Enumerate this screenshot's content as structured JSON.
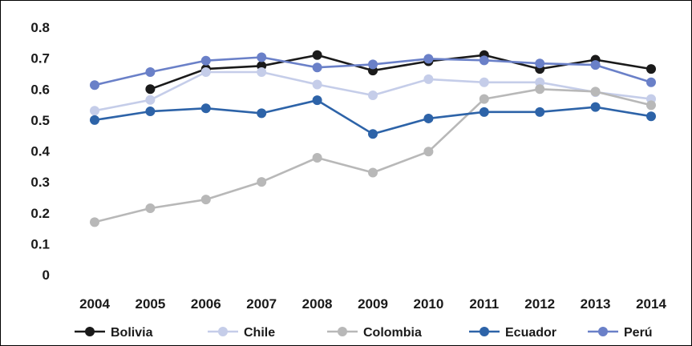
{
  "chart_data": {
    "type": "line",
    "title": "",
    "xlabel": "",
    "ylabel": "",
    "categories": [
      "2004",
      "2005",
      "2006",
      "2007",
      "2008",
      "2009",
      "2010",
      "2011",
      "2012",
      "2013",
      "2014"
    ],
    "ylim": [
      0,
      0.8
    ],
    "yticks": [
      "0",
      "0.1",
      "0.2",
      "0.3",
      "0.4",
      "0.5",
      "0.6",
      "0.7",
      "0.8"
    ],
    "grid": false,
    "legend_position": "bottom",
    "series": [
      {
        "name": "Bolivia",
        "color": "#1a1a1a",
        "values": [
          null,
          0.6,
          0.665,
          0.675,
          0.71,
          0.66,
          0.69,
          0.71,
          0.665,
          0.695,
          0.665
        ]
      },
      {
        "name": "Chile",
        "color": "#c5cde9",
        "values": [
          0.53,
          0.565,
          0.655,
          0.655,
          0.615,
          0.58,
          0.632,
          0.622,
          0.622,
          0.59,
          0.568
        ]
      },
      {
        "name": "Colombia",
        "color": "#b8b8b8",
        "values": [
          0.17,
          0.215,
          0.243,
          0.3,
          0.378,
          0.33,
          0.398,
          0.568,
          0.6,
          0.592,
          0.548
        ]
      },
      {
        "name": "Ecuador",
        "color": "#2d63a8",
        "values": [
          0.5,
          0.528,
          0.538,
          0.522,
          0.564,
          0.455,
          0.505,
          0.526,
          0.526,
          0.542,
          0.512
        ]
      },
      {
        "name": "Perú",
        "color": "#6a80c8",
        "values": [
          0.613,
          0.655,
          0.692,
          0.703,
          0.67,
          0.68,
          0.698,
          0.693,
          0.683,
          0.678,
          0.622
        ]
      }
    ]
  }
}
